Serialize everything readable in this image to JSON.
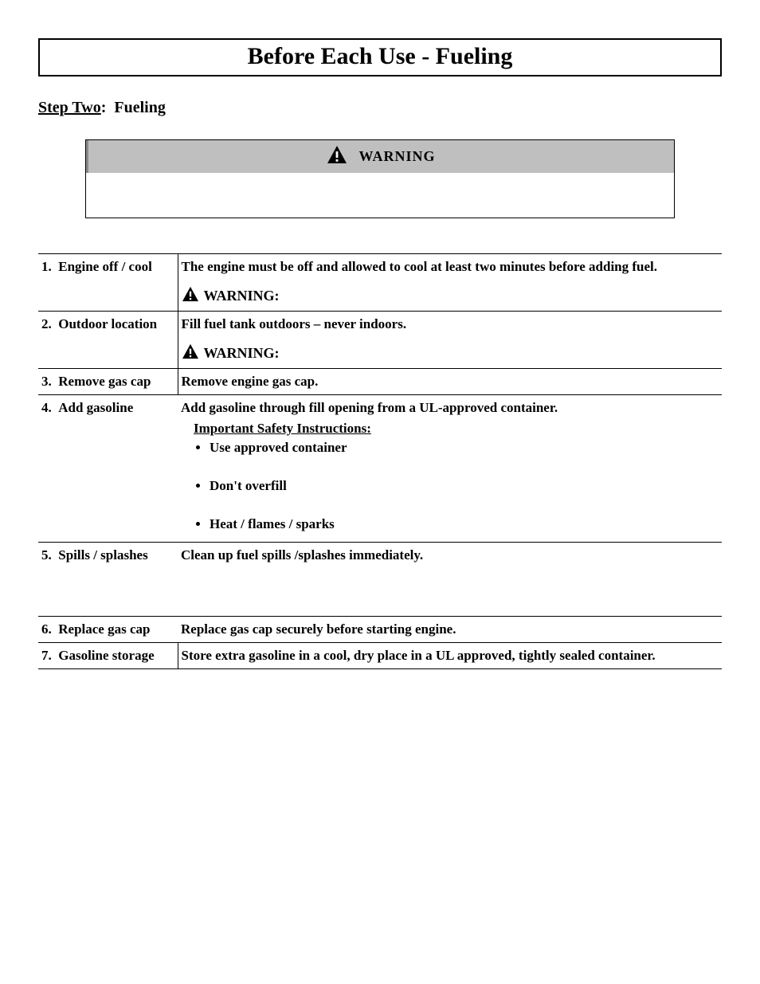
{
  "page_title": "Before Each Use - Fueling",
  "section": {
    "step_label": "Step Two",
    "step_name": "Fueling"
  },
  "warning_box": {
    "label": "WARNING"
  },
  "inline_warning_label": "WARNING:",
  "steps": [
    {
      "num": "1.",
      "name": "Engine off / cool",
      "desc": "The engine must be off and allowed to cool at least two minutes before adding fuel.",
      "has_warning": true,
      "left_sep": true
    },
    {
      "num": "2.",
      "name": "Outdoor location",
      "desc": "Fill fuel tank outdoors – never indoors.",
      "has_warning": true,
      "left_sep": true
    },
    {
      "num": "3.",
      "name": "Remove gas cap",
      "desc": "Remove engine gas cap.",
      "has_warning": false,
      "left_sep": true
    },
    {
      "num": "4.",
      "name": "Add gasoline",
      "desc": "Add gasoline through fill opening from a UL-approved container.",
      "has_warning": false,
      "left_sep": false,
      "safety_heading": "Important Safety Instructions:",
      "bullets": [
        "Use approved container",
        "Don't overfill",
        "Heat / flames / sparks"
      ]
    },
    {
      "num": "5.",
      "name": "Spills / splashes",
      "desc": "Clean up fuel spills /splashes immediately.",
      "has_warning": false,
      "left_sep": false,
      "extra_space": true
    },
    {
      "num": "6.",
      "name": "Replace gas cap",
      "desc": "Replace gas cap securely before starting engine.",
      "has_warning": false,
      "left_sep": false
    },
    {
      "num": "7.",
      "name": "Gasoline storage",
      "desc": "Store extra gasoline in a cool, dry place in a UL approved, tightly sealed container.",
      "has_warning": false,
      "left_sep": true
    }
  ],
  "colors": {
    "warning_bg": "#bfbfbf",
    "border": "#000000",
    "background": "#ffffff"
  }
}
